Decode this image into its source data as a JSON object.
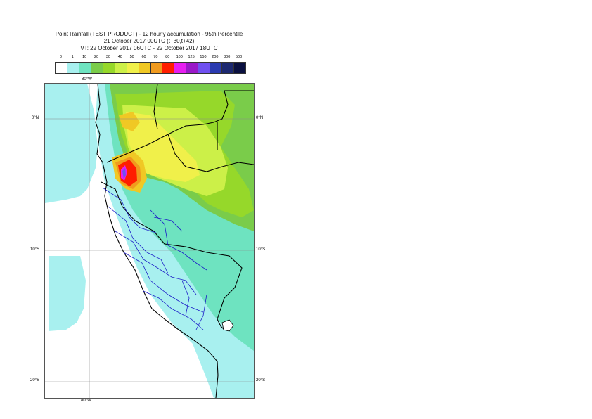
{
  "title": {
    "line1": "Point Rainfall (TEST PRODUCT) - 12 hourly accumulation - 95th Percentile",
    "line2": "21 October 2017 00UTC (t+30,t+42)",
    "line3": "VT: 22 October 2017 06UTC - 22 October 2017 18UTC"
  },
  "legend": {
    "thresholds": [
      "0",
      "1",
      "10",
      "20",
      "30",
      "40",
      "50",
      "60",
      "70",
      "80",
      "100",
      "125",
      "150",
      "200",
      "300",
      "500"
    ],
    "colors": [
      "#ffffff",
      "#a8f0ef",
      "#6ee3c0",
      "#7acc4a",
      "#96d82a",
      "#ccf048",
      "#f0f04a",
      "#f0c824",
      "#f09a1e",
      "#ff1e00",
      "#e61ef0",
      "#9a18c8",
      "#7050f0",
      "#2a3ab0",
      "#1c2870",
      "#0a1040"
    ]
  },
  "map": {
    "lat_labels": {
      "n0": "0°N",
      "s10": "10°S",
      "s20": "20°S"
    },
    "lon_labels": {
      "top": "80°W",
      "bottom": "80°W"
    }
  }
}
